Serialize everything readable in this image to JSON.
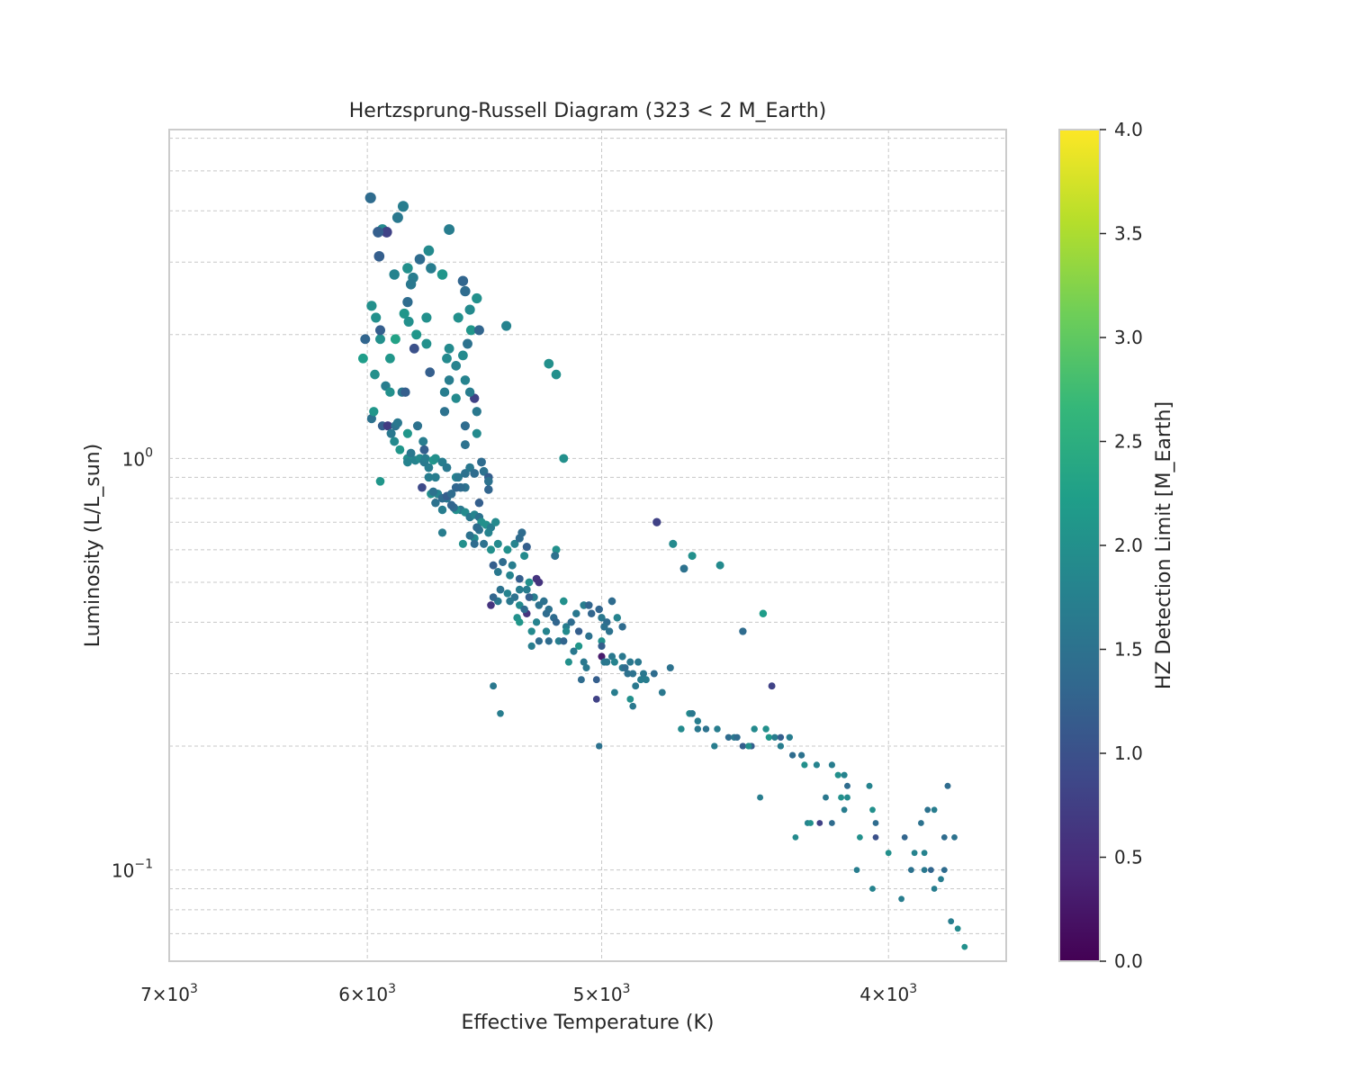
{
  "chart_data": {
    "type": "scatter",
    "title": "Hertzsprung-Russell Diagram (323 < 2 M_Earth)",
    "xlabel": "Effective Temperature (K)",
    "ylabel": "Luminosity (L/L_sun)",
    "x_scale": "log",
    "y_scale": "log",
    "x_inverted": true,
    "xlim": [
      7000,
      3650
    ],
    "ylim": [
      0.06,
      6.3
    ],
    "grid": true,
    "x_ticks": [
      {
        "value": 7000,
        "mantissa": "7",
        "exp": "3"
      },
      {
        "value": 6000,
        "mantissa": "6",
        "exp": "3"
      },
      {
        "value": 5000,
        "mantissa": "5",
        "exp": "3"
      },
      {
        "value": 4000,
        "mantissa": "4",
        "exp": "3"
      }
    ],
    "y_ticks": [
      {
        "value": 1.0,
        "base": "10",
        "exp": "0"
      },
      {
        "value": 0.1,
        "base": "10",
        "exp": "−1"
      }
    ],
    "colorbar": {
      "label": "HZ Detection Limit [M_Earth]",
      "colormap": "viridis",
      "min": 0.0,
      "max": 4.0,
      "ticks": [
        "0.0",
        "0.5",
        "1.0",
        "1.5",
        "2.0",
        "2.5",
        "3.0",
        "3.5",
        "4.0"
      ]
    },
    "colormap_stops": [
      "#440154",
      "#482878",
      "#3e4989",
      "#31688e",
      "#26828e",
      "#1f9e89",
      "#35b779",
      "#6ece58",
      "#b5de2b",
      "#fde725"
    ],
    "point_fields": [
      "teff_K",
      "luminosity_Lsun",
      "hz_detection_limit_MEarth"
    ],
    "points": [
      [
        5985,
        4.3,
        1.4
      ],
      [
        5930,
        3.6,
        1.9
      ],
      [
        5910,
        3.55,
        0.8
      ],
      [
        5950,
        3.55,
        1.2
      ],
      [
        5835,
        4.1,
        1.7
      ],
      [
        5860,
        3.85,
        1.6
      ],
      [
        5945,
        3.1,
        1.2
      ],
      [
        5630,
        3.6,
        1.7
      ],
      [
        5720,
        3.2,
        1.9
      ],
      [
        5760,
        3.05,
        1.4
      ],
      [
        5815,
        2.9,
        2.0
      ],
      [
        5875,
        2.8,
        1.8
      ],
      [
        5790,
        2.75,
        1.7
      ],
      [
        5710,
        2.9,
        1.7
      ],
      [
        5660,
        2.8,
        2.1
      ],
      [
        5800,
        2.65,
        1.6
      ],
      [
        5815,
        2.4,
        1.4
      ],
      [
        5980,
        2.35,
        2.0
      ],
      [
        5960,
        2.2,
        2.0
      ],
      [
        5830,
        2.25,
        2.1
      ],
      [
        5810,
        2.15,
        2.0
      ],
      [
        5730,
        2.2,
        2.0
      ],
      [
        6010,
        1.95,
        1.3
      ],
      [
        5940,
        1.95,
        2.0
      ],
      [
        6020,
        1.75,
        2.2
      ],
      [
        5895,
        1.75,
        2.1
      ],
      [
        5940,
        2.05,
        1.2
      ],
      [
        5870,
        1.95,
        2.3
      ],
      [
        5775,
        2.0,
        2.1
      ],
      [
        5730,
        1.9,
        2.0
      ],
      [
        5785,
        1.85,
        1.0
      ],
      [
        5715,
        1.62,
        1.2
      ],
      [
        5535,
        2.05,
        2.1
      ],
      [
        5385,
        2.1,
        1.8
      ],
      [
        5965,
        1.6,
        2.0
      ],
      [
        5915,
        1.5,
        1.7
      ],
      [
        5895,
        1.45,
        2.0
      ],
      [
        5840,
        1.45,
        1.6
      ],
      [
        5825,
        1.45,
        1.2
      ],
      [
        5980,
        1.25,
        1.5
      ],
      [
        5970,
        1.3,
        2.1
      ],
      [
        5930,
        1.2,
        1.2
      ],
      [
        5905,
        1.2,
        0.7
      ],
      [
        5890,
        1.15,
        1.6
      ],
      [
        5870,
        1.2,
        1.5
      ],
      [
        5875,
        1.1,
        1.9
      ],
      [
        5850,
        1.05,
        2.1
      ],
      [
        5815,
        1.0,
        2.0
      ],
      [
        5800,
        1.03,
        1.6
      ],
      [
        5815,
        0.98,
        1.8
      ],
      [
        5780,
        0.99,
        1.8
      ],
      [
        5760,
        1.0,
        1.9
      ],
      [
        5740,
        0.98,
        1.6
      ],
      [
        5735,
        1.0,
        1.7
      ],
      [
        5700,
        0.99,
        2.1
      ],
      [
        5690,
        1.0,
        2.0
      ],
      [
        5770,
        1.2,
        1.5
      ],
      [
        5815,
        1.15,
        2.1
      ],
      [
        5860,
        1.22,
        1.6
      ],
      [
        5745,
        1.1,
        1.7
      ],
      [
        5740,
        1.05,
        1.2
      ],
      [
        5720,
        0.95,
        1.7
      ],
      [
        5690,
        0.9,
        1.7
      ],
      [
        5660,
        0.98,
        1.7
      ],
      [
        5640,
        0.95,
        1.6
      ],
      [
        5600,
        0.9,
        1.8
      ],
      [
        5590,
        0.9,
        1.6
      ],
      [
        5560,
        0.92,
        1.5
      ],
      [
        5540,
        0.95,
        1.6
      ],
      [
        5520,
        0.92,
        1.4
      ],
      [
        5560,
        0.85,
        1.5
      ],
      [
        5580,
        0.85,
        1.4
      ],
      [
        5600,
        0.85,
        1.3
      ],
      [
        5640,
        0.8,
        1.6
      ],
      [
        5660,
        0.75,
        1.7
      ],
      [
        5690,
        0.78,
        1.5
      ],
      [
        5710,
        0.82,
        2.0
      ],
      [
        5720,
        0.9,
        1.7
      ],
      [
        5750,
        0.85,
        0.9
      ],
      [
        5940,
        0.88,
        2.1
      ],
      [
        5580,
        0.75,
        1.6
      ],
      [
        5560,
        0.74,
        1.9
      ],
      [
        5540,
        0.72,
        1.6
      ],
      [
        5520,
        0.73,
        1.8
      ],
      [
        5500,
        0.72,
        1.5
      ],
      [
        5490,
        0.7,
        2.0
      ],
      [
        5470,
        0.69,
        2.0
      ],
      [
        5450,
        0.68,
        1.7
      ],
      [
        5430,
        0.7,
        1.9
      ],
      [
        5460,
        0.66,
        1.8
      ],
      [
        5500,
        0.67,
        1.5
      ],
      [
        5520,
        0.64,
        1.9
      ],
      [
        5540,
        0.65,
        1.5
      ],
      [
        5600,
        0.75,
        2.0
      ],
      [
        5660,
        0.66,
        1.7
      ],
      [
        5570,
        0.62,
        2.0
      ],
      [
        5520,
        0.62,
        1.4
      ],
      [
        5480,
        0.62,
        1.5
      ],
      [
        5450,
        0.6,
        2.0
      ],
      [
        5420,
        0.62,
        1.9
      ],
      [
        5380,
        0.6,
        2.0
      ],
      [
        5350,
        0.62,
        1.8
      ],
      [
        5330,
        0.64,
        1.4
      ],
      [
        5300,
        0.61,
        1.2
      ],
      [
        5400,
        0.56,
        1.4
      ],
      [
        5310,
        0.58,
        1.9
      ],
      [
        5180,
        0.6,
        2.0
      ],
      [
        5185,
        0.58,
        1.5
      ],
      [
        5440,
        0.55,
        1.2
      ],
      [
        5420,
        0.53,
        1.6
      ],
      [
        5370,
        0.52,
        1.8
      ],
      [
        5360,
        0.55,
        1.7
      ],
      [
        5330,
        0.51,
        1.2
      ],
      [
        5290,
        0.5,
        2.0
      ],
      [
        5330,
        0.48,
        1.7
      ],
      [
        5300,
        0.48,
        1.7
      ],
      [
        5350,
        0.46,
        1.5
      ],
      [
        5380,
        0.47,
        1.8
      ],
      [
        5420,
        0.45,
        1.6
      ],
      [
        5450,
        0.44,
        0.6
      ],
      [
        5330,
        0.44,
        1.9
      ],
      [
        5300,
        0.42,
        0.6
      ],
      [
        5270,
        0.46,
        1.7
      ],
      [
        5250,
        0.44,
        1.5
      ],
      [
        5230,
        0.45,
        1.5
      ],
      [
        5210,
        0.43,
        1.5
      ],
      [
        5190,
        0.41,
        1.4
      ],
      [
        5260,
        0.4,
        1.8
      ],
      [
        5220,
        0.38,
        1.8
      ],
      [
        5210,
        0.36,
        1.4
      ],
      [
        5250,
        0.36,
        1.4
      ],
      [
        5280,
        0.35,
        1.7
      ],
      [
        5280,
        0.38,
        1.9
      ],
      [
        5140,
        0.39,
        1.7
      ],
      [
        5120,
        0.4,
        1.4
      ],
      [
        5100,
        0.42,
        1.6
      ],
      [
        5070,
        0.44,
        1.7
      ],
      [
        5050,
        0.44,
        1.3
      ],
      [
        5040,
        0.42,
        1.3
      ],
      [
        5010,
        0.43,
        1.3
      ],
      [
        5000,
        0.41,
        1.6
      ],
      [
        4980,
        0.4,
        1.4
      ],
      [
        4990,
        0.39,
        1.5
      ],
      [
        4970,
        0.38,
        1.5
      ],
      [
        5000,
        0.36,
        2.0
      ],
      [
        5140,
        0.38,
        1.9
      ],
      [
        5090,
        0.35,
        2.1
      ],
      [
        5170,
        0.36,
        1.7
      ],
      [
        5260,
        0.51,
        0.6
      ],
      [
        5250,
        0.5,
        0.6
      ],
      [
        5090,
        0.38,
        1.2
      ],
      [
        5050,
        0.37,
        1.5
      ],
      [
        5130,
        0.32,
        2.0
      ],
      [
        5070,
        0.32,
        1.6
      ],
      [
        5150,
        0.45,
        2.0
      ],
      [
        5000,
        0.35,
        1.2
      ],
      [
        5000,
        0.33,
        0.3
      ],
      [
        4990,
        0.32,
        1.6
      ],
      [
        4980,
        0.32,
        1.6
      ],
      [
        4960,
        0.33,
        1.6
      ],
      [
        4950,
        0.32,
        1.8
      ],
      [
        4920,
        0.33,
        1.6
      ],
      [
        4920,
        0.31,
        1.6
      ],
      [
        4900,
        0.3,
        1.5
      ],
      [
        4910,
        0.31,
        1.4
      ],
      [
        4880,
        0.3,
        1.5
      ],
      [
        4860,
        0.32,
        1.6
      ],
      [
        4890,
        0.32,
        1.6
      ],
      [
        4850,
        0.29,
        1.7
      ],
      [
        4870,
        0.28,
        1.6
      ],
      [
        4840,
        0.3,
        1.6
      ],
      [
        4830,
        0.29,
        1.7
      ],
      [
        4800,
        0.3,
        1.4
      ],
      [
        5020,
        0.29,
        1.2
      ],
      [
        5020,
        0.26,
        0.8
      ],
      [
        4950,
        0.27,
        1.7
      ],
      [
        4890,
        0.26,
        2.0
      ],
      [
        4880,
        0.25,
        1.6
      ],
      [
        4770,
        0.27,
        1.6
      ],
      [
        4740,
        0.31,
        1.5
      ],
      [
        4700,
        0.22,
        1.9
      ],
      [
        4670,
        0.24,
        1.9
      ],
      [
        4660,
        0.24,
        1.6
      ],
      [
        4640,
        0.23,
        1.7
      ],
      [
        4640,
        0.22,
        1.6
      ],
      [
        4610,
        0.22,
        1.5
      ],
      [
        4580,
        0.2,
        1.7
      ],
      [
        4570,
        0.22,
        1.7
      ],
      [
        4530,
        0.21,
        1.4
      ],
      [
        4510,
        0.21,
        1.6
      ],
      [
        4500,
        0.21,
        1.4
      ],
      [
        4480,
        0.2,
        1.2
      ],
      [
        4450,
        0.2,
        1.2
      ],
      [
        4440,
        0.22,
        1.9
      ],
      [
        4400,
        0.22,
        2.0
      ],
      [
        4390,
        0.21,
        2.1
      ],
      [
        4370,
        0.21,
        1.7
      ],
      [
        4350,
        0.2,
        1.7
      ],
      [
        4320,
        0.21,
        1.7
      ],
      [
        4310,
        0.19,
        1.4
      ],
      [
        4280,
        0.19,
        1.5
      ],
      [
        4270,
        0.18,
        2.0
      ],
      [
        4230,
        0.18,
        1.8
      ],
      [
        4180,
        0.18,
        1.7
      ],
      [
        4160,
        0.17,
        2.0
      ],
      [
        4140,
        0.17,
        1.8
      ],
      [
        4130,
        0.15,
        1.9
      ],
      [
        4200,
        0.15,
        1.6
      ],
      [
        4420,
        0.15,
        1.7
      ],
      [
        4260,
        0.13,
        1.8
      ],
      [
        4250,
        0.13,
        2.0
      ],
      [
        4220,
        0.13,
        0.8
      ],
      [
        4180,
        0.13,
        1.4
      ],
      [
        4140,
        0.14,
        1.7
      ],
      [
        4130,
        0.16,
        1.4
      ],
      [
        4150,
        0.15,
        2.0
      ],
      [
        4060,
        0.16,
        1.8
      ],
      [
        4050,
        0.14,
        2.0
      ],
      [
        4040,
        0.12,
        1.0
      ],
      [
        4300,
        0.12,
        1.9
      ],
      [
        4460,
        0.2,
        2.0
      ],
      [
        4350,
        0.21,
        1.2
      ],
      [
        4380,
        0.28,
        0.8
      ],
      [
        4480,
        0.38,
        1.4
      ],
      [
        4410,
        0.42,
        2.2
      ],
      [
        4790,
        0.7,
        0.8
      ],
      [
        4560,
        0.55,
        1.9
      ],
      [
        4660,
        0.58,
        2.0
      ],
      [
        4690,
        0.54,
        1.5
      ],
      [
        4730,
        0.62,
        1.9
      ],
      [
        5080,
        0.29,
        1.4
      ],
      [
        5010,
        0.2,
        1.5
      ],
      [
        5440,
        0.28,
        1.6
      ],
      [
        5410,
        0.24,
        1.7
      ],
      [
        5150,
        1.0,
        2.0
      ],
      [
        5210,
        1.7,
        2.0
      ],
      [
        5180,
        1.6,
        2.0
      ],
      [
        5560,
        1.2,
        1.4
      ],
      [
        5560,
        1.08,
        1.5
      ],
      [
        5650,
        1.3,
        1.5
      ],
      [
        5600,
        1.4,
        1.9
      ],
      [
        5630,
        1.55,
        1.7
      ],
      [
        5560,
        1.55,
        1.8
      ],
      [
        5520,
        1.4,
        0.8
      ],
      [
        5510,
        1.3,
        1.6
      ],
      [
        5650,
        1.45,
        1.7
      ],
      [
        5640,
        1.75,
        1.9
      ],
      [
        5630,
        1.85,
        1.9
      ],
      [
        5550,
        1.9,
        1.5
      ],
      [
        5590,
        2.2,
        2.0
      ],
      [
        5540,
        2.3,
        1.9
      ],
      [
        5570,
        2.7,
        1.3
      ],
      [
        5560,
        2.55,
        1.4
      ],
      [
        5510,
        2.45,
        2.0
      ],
      [
        5500,
        2.05,
        1.3
      ],
      [
        5570,
        1.78,
        1.9
      ],
      [
        5600,
        1.68,
        1.8
      ],
      [
        5540,
        1.45,
        1.7
      ],
      [
        5510,
        1.15,
        1.9
      ],
      [
        5490,
        0.98,
        1.4
      ],
      [
        5480,
        0.93,
        1.5
      ],
      [
        5460,
        0.9,
        1.2
      ],
      [
        5460,
        0.88,
        1.5
      ],
      [
        5610,
        0.76,
        1.4
      ],
      [
        5620,
        0.77,
        1.3
      ],
      [
        5680,
        0.82,
        1.8
      ],
      [
        5700,
        0.83,
        1.5
      ],
      [
        5660,
        0.8,
        1.4
      ],
      [
        5640,
        0.81,
        1.2
      ],
      [
        5620,
        0.82,
        1.4
      ],
      [
        3890,
        0.1,
        1.6
      ],
      [
        3870,
        0.1,
        1.3
      ],
      [
        3840,
        0.095,
        1.7
      ],
      [
        3830,
        0.1,
        1.4
      ],
      [
        3920,
        0.11,
        1.8
      ],
      [
        3900,
        0.13,
        1.5
      ],
      [
        3880,
        0.14,
        1.5
      ],
      [
        3830,
        0.12,
        1.4
      ],
      [
        3950,
        0.12,
        1.3
      ],
      [
        3860,
        0.09,
        1.7
      ],
      [
        3930,
        0.1,
        1.5
      ],
      [
        3890,
        0.11,
        1.8
      ],
      [
        3810,
        0.075,
        1.7
      ],
      [
        3790,
        0.072,
        1.9
      ],
      [
        4050,
        0.09,
        1.8
      ],
      [
        4100,
        0.1,
        1.7
      ],
      [
        3860,
        0.14,
        1.7
      ],
      [
        3800,
        0.12,
        1.5
      ],
      [
        3820,
        0.16,
        1.4
      ],
      [
        3770,
        0.065,
        2.0
      ],
      [
        3960,
        0.085,
        1.7
      ],
      [
        4000,
        0.11,
        2.0
      ],
      [
        4040,
        0.13,
        1.4
      ],
      [
        4090,
        0.12,
        2.0
      ],
      [
        5310,
        0.43,
        1.4
      ],
      [
        5340,
        0.41,
        2.0
      ],
      [
        5220,
        0.42,
        1.4
      ],
      [
        5330,
        0.4,
        2.1
      ],
      [
        5320,
        0.66,
        1.4
      ],
      [
        5460,
        0.84,
        1.3
      ],
      [
        5500,
        0.78,
        1.2
      ],
      [
        5510,
        0.68,
        1.4
      ],
      [
        5410,
        0.48,
        1.5
      ],
      [
        5440,
        0.46,
        1.3
      ],
      [
        5370,
        0.45,
        1.6
      ],
      [
        5290,
        0.46,
        1.2
      ],
      [
        5180,
        0.4,
        1.3
      ],
      [
        5150,
        0.36,
        1.3
      ],
      [
        5110,
        0.34,
        1.6
      ],
      [
        5060,
        0.31,
        1.6
      ],
      [
        4960,
        0.45,
        1.4
      ],
      [
        4940,
        0.41,
        1.8
      ],
      [
        4920,
        0.39,
        1.4
      ]
    ]
  }
}
